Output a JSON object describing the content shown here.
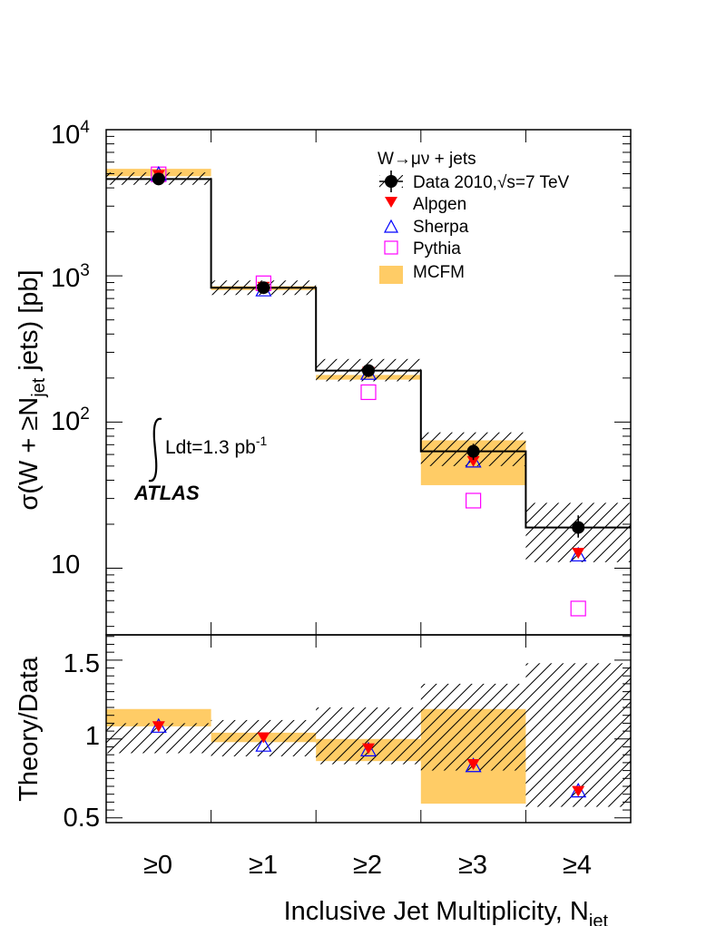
{
  "chart_data": {
    "type": "step",
    "categories": [
      "≥0",
      "≥1",
      "≥2",
      "≥3",
      "≥4"
    ],
    "xlabel_main": "Inclusive Jet Multiplicity, N",
    "xlabel_sub": "jet",
    "top_panel": {
      "ylabel": "σ(W + ≥N",
      "ylabel_sub": "jet",
      "ylabel_tail": " jets) [pb]",
      "yscale": "log",
      "ylim": [
        3.5,
        10000
      ],
      "ytick_labels": {
        "ten": "10",
        "e2_base": "10",
        "e2_exp": "2",
        "e3_base": "10",
        "e3_exp": "3",
        "e4_base": "10",
        "e4_exp": "4"
      },
      "series": [
        {
          "name": "Data 2010,√s=7 TeV",
          "values": [
            4600,
            830,
            225,
            63,
            19
          ],
          "err_low": [
            300,
            60,
            20,
            8,
            2.8
          ],
          "err_high": [
            300,
            60,
            20,
            8,
            4
          ],
          "syst_low": [
            4200,
            740,
            190,
            50,
            11
          ],
          "syst_high": [
            5100,
            930,
            270,
            85,
            28
          ]
        },
        {
          "name": "Alpgen",
          "values": [
            4900,
            840,
            220,
            54,
            12.7
          ]
        },
        {
          "name": "Sherpa",
          "values": [
            4950,
            800,
            215,
            54,
            12.3
          ]
        },
        {
          "name": "Pythia",
          "values": [
            4950,
            890,
            160,
            29,
            5.3
          ]
        },
        {
          "name": "MCFM",
          "low": [
            4800,
            800,
            195,
            37
          ],
          "high": [
            5400,
            850,
            210,
            75
          ]
        }
      ],
      "legend_title": "W→μν + jets",
      "lumi_text": "Ldt=1.3 pb",
      "lumi_sup": "-1",
      "experiment": "ATLAS"
    },
    "bottom_panel": {
      "ylabel": "Theory/Data",
      "ylim": [
        0.47,
        1.66
      ],
      "yticks": [
        "0.5",
        "1",
        "1.5"
      ],
      "syst_band_low": [
        0.91,
        0.89,
        0.84,
        0.8,
        0.57
      ],
      "syst_band_high": [
        1.1,
        1.12,
        1.2,
        1.35,
        1.48
      ],
      "series": [
        {
          "name": "Alpgen",
          "values": [
            1.08,
            1.01,
            0.94,
            0.84,
            0.67
          ]
        },
        {
          "name": "Sherpa",
          "values": [
            1.08,
            0.96,
            0.93,
            0.83,
            0.67
          ]
        },
        {
          "name": "MCFM",
          "low": [
            1.08,
            0.98,
            0.86,
            0.59
          ],
          "high": [
            1.19,
            1.04,
            1.0,
            1.19
          ]
        }
      ]
    },
    "colors": {
      "alpgen": "#ff0000",
      "sherpa": "#0000ff",
      "pythia": "#ff00ff",
      "mcfm": "#ffcc66",
      "data": "#000000"
    }
  }
}
